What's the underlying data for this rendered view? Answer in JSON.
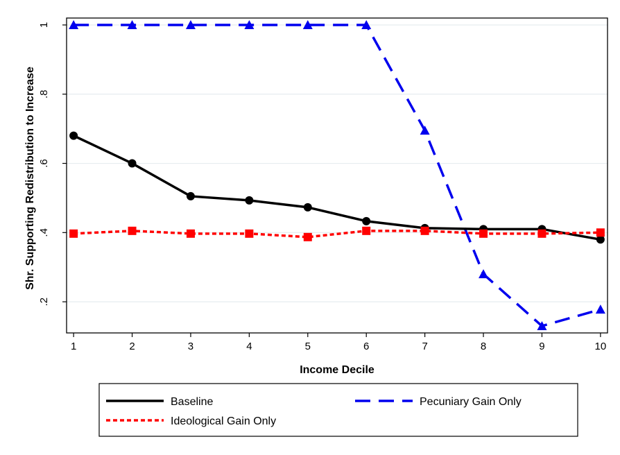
{
  "chart_data": {
    "type": "line",
    "title": "",
    "xlabel": "Income Decile",
    "ylabel": "Shr. Supporting Redistribution to Increase",
    "x": [
      1,
      2,
      3,
      4,
      5,
      6,
      7,
      8,
      9,
      10
    ],
    "x_tick_labels": [
      "1",
      "2",
      "3",
      "4",
      "5",
      "6",
      "7",
      "8",
      "9",
      "10"
    ],
    "xlim": [
      0.88,
      10.12
    ],
    "ylim": [
      0.11,
      1.02
    ],
    "y_ticks": [
      0.2,
      0.4,
      0.6,
      0.8,
      1.0
    ],
    "y_tick_labels": [
      ".2",
      ".4",
      ".6",
      ".8",
      "1"
    ],
    "grid": true,
    "legend_position": "bottom",
    "series": [
      {
        "name": "Baseline",
        "color": "#000000",
        "style": "solid",
        "marker": "circle",
        "values": [
          0.68,
          0.6,
          0.505,
          0.493,
          0.473,
          0.433,
          0.413,
          0.41,
          0.41,
          0.38
        ]
      },
      {
        "name": "Pecuniary Gain Only",
        "color": "#0000ee",
        "style": "dashed",
        "marker": "triangle",
        "values": [
          1.0,
          1.0,
          1.0,
          1.0,
          1.0,
          1.0,
          0.695,
          0.28,
          0.13,
          0.178
        ]
      },
      {
        "name": "Ideological Gain Only",
        "color": "#ff0000",
        "style": "dotted",
        "marker": "square",
        "values": [
          0.397,
          0.405,
          0.397,
          0.397,
          0.387,
          0.405,
          0.405,
          0.397,
          0.397,
          0.4
        ]
      }
    ]
  }
}
